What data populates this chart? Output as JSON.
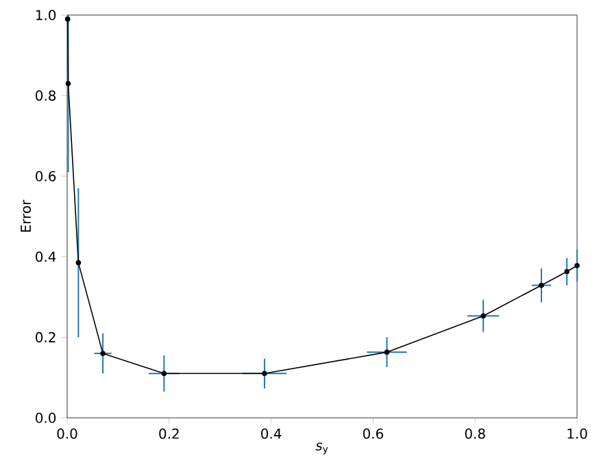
{
  "chart_data": {
    "type": "line",
    "xlabel": "*s*$_{y}$",
    "ylabel": "Error",
    "x": [
      0.001,
      0.002,
      0.022,
      0.07,
      0.19,
      0.387,
      0.627,
      0.816,
      0.93,
      0.98,
      1.0
    ],
    "series": [
      {
        "color": "#000000",
        "values": [
          0.99,
          0.83,
          0.385,
          0.16,
          0.11,
          0.11,
          0.163,
          0.253,
          0.329,
          0.363,
          0.378
        ],
        "errors": [
          null,
          [
            0.61,
            1.0
          ],
          [
            0.2,
            0.57
          ],
          [
            0.11,
            0.21
          ],
          [
            0.065,
            0.155
          ],
          [
            0.073,
            0.147
          ],
          [
            0.126,
            0.2
          ],
          [
            0.213,
            0.293
          ],
          [
            0.287,
            0.371
          ],
          [
            0.329,
            0.397
          ],
          [
            0.338,
            0.418
          ]
        ],
        "xerrors": [
          null,
          null,
          null,
          0.017,
          0.03,
          0.043,
          0.039,
          0.031,
          0.019,
          null,
          null
        ]
      }
    ],
    "marker": "circle",
    "xlim": [
      0,
      1
    ],
    "ylim": [
      0,
      1
    ],
    "xticks": [
      {
        "value": 0,
        "label": "0.0"
      },
      0.2,
      0.4,
      0.6,
      0.8,
      {
        "value": 1,
        "label": "1.0"
      }
    ],
    "yticks": [
      {
        "value": 0,
        "label": "0.0"
      },
      0.2,
      0.4,
      0.6,
      0.8,
      {
        "value": 1,
        "label": "1.0"
      }
    ],
    "grid": false
  }
}
